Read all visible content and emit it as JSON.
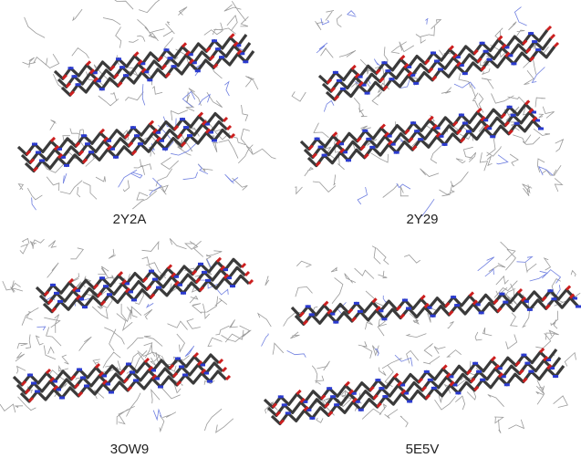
{
  "panels": [
    {
      "label": "2Y2A"
    },
    {
      "label": "2Y29"
    },
    {
      "label": "3OW9"
    },
    {
      "label": "5E5V"
    }
  ]
}
